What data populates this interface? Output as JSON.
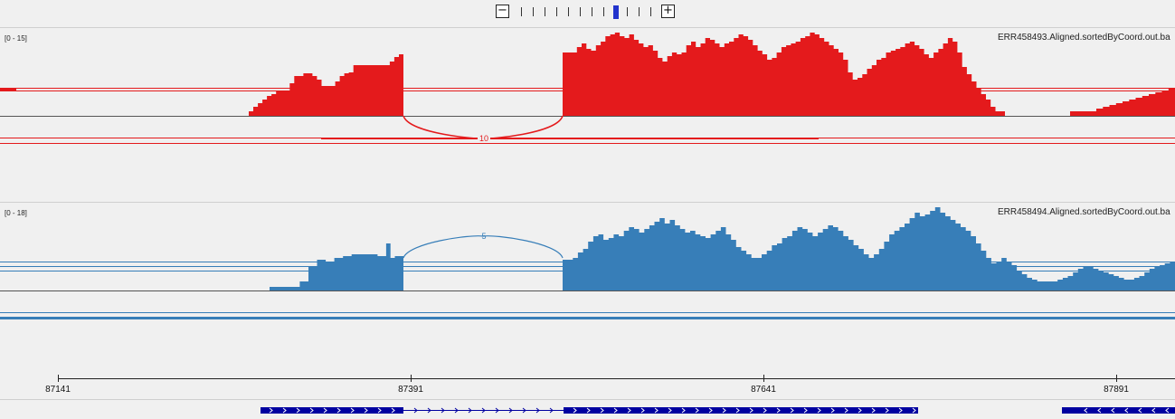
{
  "zoom": {
    "minus_label": "−",
    "plus_label": "+",
    "levels": 12,
    "current_level": 8
  },
  "tracks": [
    {
      "range": "[0 - 15]",
      "name": "ERR458493.Aligned.sortedByCoord.out.ba",
      "color": "#e41a1c",
      "junction_count": "10"
    },
    {
      "range": "[0 - 18]",
      "name": "ERR458494.Aligned.sortedByCoord.out.ba",
      "color": "#377eb8",
      "junction_count": "5"
    }
  ],
  "ruler": {
    "labels": [
      "87141",
      "87391",
      "87641",
      "87891"
    ]
  },
  "gene_track": {
    "color": "#0000a0"
  },
  "coverage": {
    "track1_max": 15,
    "track2_max": 18,
    "bins_bp_per_step": 5,
    "track1": [
      [
        87279,
        87500,
        [
          1.5,
          1.5,
          2.5,
          2.5,
          3.5,
          4.5,
          4.5,
          5,
          5,
          5.5,
          5.5,
          6,
          6,
          6.5,
          6.5,
          6.5,
          6.5,
          6.5,
          7,
          7.5,
          7.5,
          7,
          6.5,
          6.5,
          6.5,
          6,
          6,
          5.5,
          5.5,
          6,
          6,
          7,
          7,
          7.5,
          8,
          8.5,
          8.5,
          9,
          9,
          8.5,
          8.5,
          8.5,
          8.5,
          9,
          9.5,
          9.5,
          10,
          10.5,
          10.5,
          10.5,
          11,
          11,
          11,
          11
        ]
      ],
      [
        87500,
        87648,
        []
      ],
      [
        87648,
        87955,
        [
          10,
          10,
          10.5,
          11,
          11.5,
          12,
          12.5,
          13,
          13,
          13.5,
          14,
          14,
          13.5,
          13,
          12.5,
          13,
          13.5,
          13.5,
          13,
          12.5,
          12,
          11.5,
          11.5,
          11,
          12,
          12.5,
          12,
          11.5,
          11.5,
          12,
          12.5,
          13,
          13.5,
          13,
          12.5,
          12,
          11.5,
          11,
          11,
          11.5,
          12,
          12.5,
          13,
          13.5,
          13,
          12.5,
          12,
          12,
          12.5,
          13,
          13.5,
          14,
          14.5,
          14,
          13.5,
          13,
          12.5,
          12,
          11.5,
          12,
          12.5,
          13,
          13,
          13,
          12,
          11,
          10,
          9,
          8,
          7,
          7
        ]
      ],
      [
        87955,
        88020,
        [
          7.5,
          8,
          8.5,
          9,
          9.5,
          10,
          10.5,
          11,
          11.5,
          12,
          12.5,
          13,
          12.5,
          12
        ]
      ]
    ]
  }
}
